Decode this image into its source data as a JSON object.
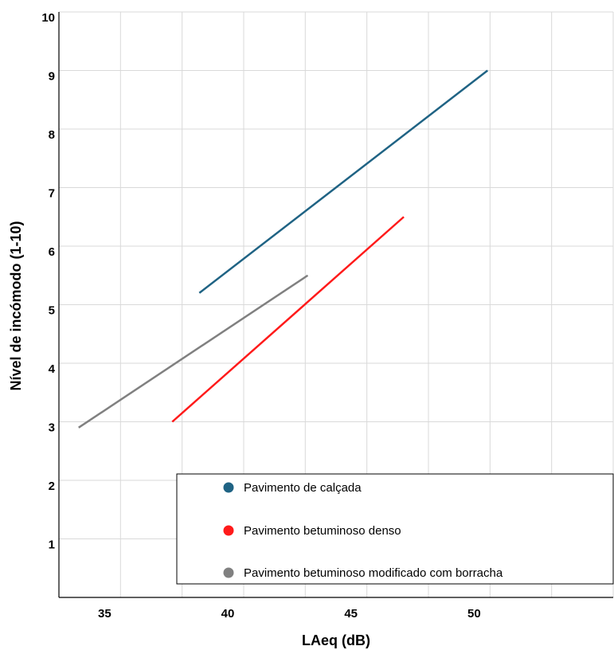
{
  "chart_data": {
    "type": "line",
    "xlabel": "LAeq (dB)",
    "ylabel": "Nível de incómodo (1-10)",
    "xlim": [
      32.5,
      55
    ],
    "ylim": [
      0,
      10
    ],
    "x_ticks": [
      35,
      40,
      45,
      50
    ],
    "y_ticks": [
      1,
      2,
      3,
      4,
      5,
      6,
      7,
      8,
      9,
      10
    ],
    "x_grid": [
      32.5,
      35,
      37.5,
      40,
      42.5,
      45,
      47.5,
      50,
      52.5,
      55
    ],
    "grid": true,
    "legend_position": "bottom-right",
    "series": [
      {
        "name": "Pavimento de calçada",
        "color": "#1f6384",
        "points": [
          [
            38.2,
            5.2
          ],
          [
            49.9,
            9.0
          ]
        ]
      },
      {
        "name": "Pavimento betuminoso denso",
        "color": "#ff1a1a",
        "points": [
          [
            37.1,
            3.0
          ],
          [
            46.5,
            6.5
          ]
        ]
      },
      {
        "name": "Pavimento betuminoso modificado com borracha",
        "color": "#808080",
        "points": [
          [
            33.3,
            2.9
          ],
          [
            42.6,
            5.5
          ]
        ]
      }
    ]
  }
}
